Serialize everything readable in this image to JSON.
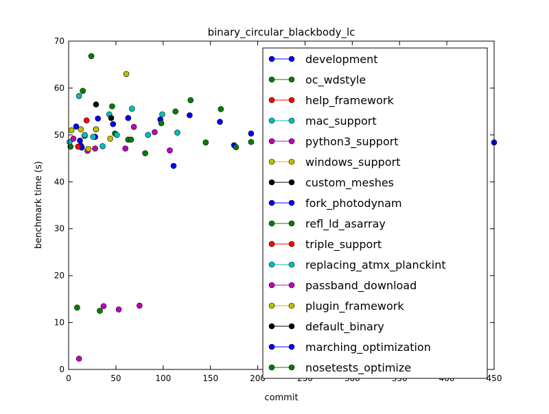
{
  "chart_data": {
    "type": "scatter",
    "title": "binary_circular_blackbody_lc",
    "xlabel": "commit",
    "ylabel": "benchmark time (s)",
    "xlim": [
      0,
      450
    ],
    "ylim": [
      0,
      70
    ],
    "xticks": [
      "0",
      "50",
      "100",
      "150",
      "200",
      "250",
      "300",
      "350",
      "400",
      "450"
    ],
    "yticks": [
      "0",
      "10",
      "20",
      "30",
      "40",
      "50",
      "60",
      "70"
    ],
    "grid": false,
    "legend_position": "upper-right",
    "series": [
      {
        "name": "development",
        "color": "#0000ff",
        "points": [
          [
            8,
            51.8
          ],
          [
            12,
            48.8
          ],
          [
            13,
            47.7
          ],
          [
            14,
            47.3
          ],
          [
            28,
            49.6
          ],
          [
            31,
            53.5
          ],
          [
            47,
            52.3
          ],
          [
            63,
            53.6
          ],
          [
            97,
            53.3
          ],
          [
            111,
            43.4
          ],
          [
            128,
            54.2
          ],
          [
            160,
            52.8
          ],
          [
            175,
            47.8
          ],
          [
            193,
            50.3
          ],
          [
            450,
            48.4
          ]
        ]
      },
      {
        "name": "oc_wdstyle",
        "color": "#008000",
        "points": [
          [
            2,
            47.5
          ],
          [
            9,
            13.2
          ],
          [
            15,
            59.4
          ],
          [
            17,
            49.8
          ],
          [
            24,
            66.8
          ],
          [
            29,
            51.2
          ],
          [
            33,
            12.5
          ],
          [
            46,
            56.1
          ],
          [
            49,
            50.3
          ],
          [
            63,
            49.0
          ],
          [
            66,
            49.0
          ],
          [
            81,
            46.1
          ],
          [
            98,
            52.5
          ],
          [
            113,
            55.0
          ],
          [
            129,
            57.4
          ],
          [
            145,
            48.4
          ],
          [
            161,
            55.5
          ],
          [
            177,
            47.4
          ],
          [
            193,
            48.5
          ]
        ]
      },
      {
        "name": "help_framework",
        "color": "#ff0000",
        "points": [
          [
            10,
            47.5
          ],
          [
            19,
            53.1
          ]
        ]
      },
      {
        "name": "mac_support",
        "color": "#00bfbf",
        "points": [
          [
            1,
            48.5
          ],
          [
            11,
            58.3
          ],
          [
            17,
            50.0
          ],
          [
            26,
            49.6
          ],
          [
            36,
            47.6
          ],
          [
            43,
            54.4
          ],
          [
            51,
            50.0
          ],
          [
            67,
            55.6
          ],
          [
            84,
            50.0
          ],
          [
            99,
            54.4
          ],
          [
            115,
            50.5
          ]
        ]
      },
      {
        "name": "python3_support",
        "color": "#bf00bf",
        "points": [
          [
            5,
            49.2
          ],
          [
            11,
            2.3
          ],
          [
            20,
            46.6
          ],
          [
            28,
            47.1
          ],
          [
            37,
            13.5
          ],
          [
            53,
            12.8
          ],
          [
            60,
            47.1
          ],
          [
            69,
            51.7
          ],
          [
            75,
            13.6
          ],
          [
            91,
            50.6
          ],
          [
            107,
            46.7
          ]
        ]
      },
      {
        "name": "windows_support",
        "color": "#bfbf00",
        "points": [
          [
            3,
            51.0
          ],
          [
            13,
            51.2
          ],
          [
            21,
            47.0
          ],
          [
            29,
            51.2
          ],
          [
            44,
            49.2
          ],
          [
            61,
            63.0
          ]
        ]
      },
      {
        "name": "custom_meshes",
        "color": "#000000",
        "points": [
          [
            29,
            56.5
          ],
          [
            45,
            53.6
          ]
        ]
      }
    ],
    "legend_entries": [
      {
        "name": "development",
        "color": "#0000ff"
      },
      {
        "name": "oc_wdstyle",
        "color": "#008000"
      },
      {
        "name": "help_framework",
        "color": "#ff0000"
      },
      {
        "name": "mac_support",
        "color": "#00bfbf"
      },
      {
        "name": "python3_support",
        "color": "#bf00bf"
      },
      {
        "name": "windows_support",
        "color": "#bfbf00"
      },
      {
        "name": "custom_meshes",
        "color": "#000000"
      },
      {
        "name": "fork_photodynam",
        "color": "#0000ff"
      },
      {
        "name": "refl_ld_asarray",
        "color": "#008000"
      },
      {
        "name": "triple_support",
        "color": "#ff0000"
      },
      {
        "name": "replacing_atmx_planckint",
        "color": "#00bfbf"
      },
      {
        "name": "passband_download",
        "color": "#bf00bf"
      },
      {
        "name": "plugin_framework",
        "color": "#bfbf00"
      },
      {
        "name": "default_binary",
        "color": "#000000"
      },
      {
        "name": "marching_optimization",
        "color": "#0000ff"
      },
      {
        "name": "nosetests_optimize",
        "color": "#008000"
      }
    ]
  }
}
